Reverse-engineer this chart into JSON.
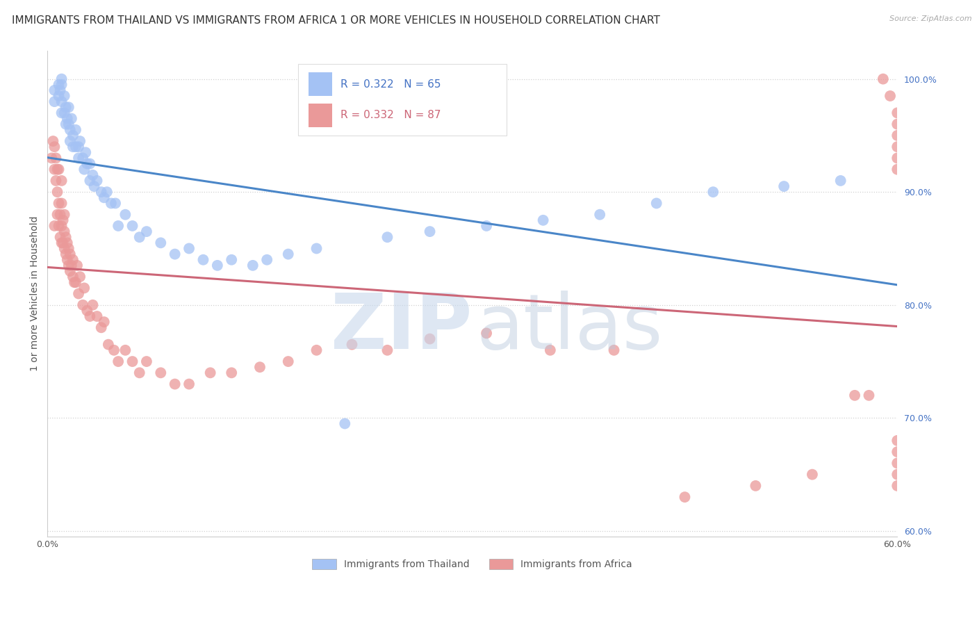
{
  "title": "IMMIGRANTS FROM THAILAND VS IMMIGRANTS FROM AFRICA 1 OR MORE VEHICLES IN HOUSEHOLD CORRELATION CHART",
  "source": "Source: ZipAtlas.com",
  "ylabel": "1 or more Vehicles in Household",
  "xlim": [
    0.0,
    0.6
  ],
  "ylim": [
    0.595,
    1.025
  ],
  "xticks": [
    0.0,
    0.1,
    0.2,
    0.3,
    0.4,
    0.5,
    0.6
  ],
  "xticklabels": [
    "0.0%",
    "",
    "",
    "",
    "",
    "",
    "60.0%"
  ],
  "yticks_right": [
    0.6,
    0.7,
    0.8,
    0.9,
    1.0
  ],
  "yticklabels_right": [
    "60.0%",
    "70.0%",
    "80.0%",
    "90.0%",
    "100.0%"
  ],
  "thailand_color": "#a4c2f4",
  "africa_color": "#ea9999",
  "trend_thailand_color": "#4a86c8",
  "trend_africa_color": "#cc6677",
  "thailand_R": 0.322,
  "thailand_N": 65,
  "africa_R": 0.332,
  "africa_N": 87,
  "legend_label_thailand": "Immigrants from Thailand",
  "legend_label_africa": "Immigrants from Africa",
  "background_color": "#ffffff",
  "grid_color": "#cccccc",
  "title_fontsize": 11,
  "axis_label_fontsize": 10,
  "tick_fontsize": 9,
  "thailand_x": [
    0.005,
    0.005,
    0.008,
    0.008,
    0.009,
    0.01,
    0.01,
    0.01,
    0.01,
    0.012,
    0.012,
    0.013,
    0.013,
    0.014,
    0.015,
    0.015,
    0.016,
    0.016,
    0.017,
    0.018,
    0.018,
    0.02,
    0.02,
    0.022,
    0.022,
    0.023,
    0.025,
    0.026,
    0.027,
    0.028,
    0.03,
    0.03,
    0.032,
    0.033,
    0.035,
    0.038,
    0.04,
    0.042,
    0.045,
    0.048,
    0.05,
    0.055,
    0.06,
    0.065,
    0.07,
    0.08,
    0.09,
    0.1,
    0.11,
    0.12,
    0.13,
    0.145,
    0.155,
    0.17,
    0.19,
    0.21,
    0.24,
    0.27,
    0.31,
    0.35,
    0.39,
    0.43,
    0.47,
    0.52,
    0.56
  ],
  "thailand_y": [
    0.99,
    0.98,
    0.995,
    0.985,
    0.99,
    0.98,
    0.97,
    0.995,
    1.0,
    0.97,
    0.985,
    0.975,
    0.96,
    0.965,
    0.975,
    0.96,
    0.955,
    0.945,
    0.965,
    0.95,
    0.94,
    0.94,
    0.955,
    0.94,
    0.93,
    0.945,
    0.93,
    0.92,
    0.935,
    0.925,
    0.91,
    0.925,
    0.915,
    0.905,
    0.91,
    0.9,
    0.895,
    0.9,
    0.89,
    0.89,
    0.87,
    0.88,
    0.87,
    0.86,
    0.865,
    0.855,
    0.845,
    0.85,
    0.84,
    0.835,
    0.84,
    0.835,
    0.84,
    0.845,
    0.85,
    0.695,
    0.86,
    0.865,
    0.87,
    0.875,
    0.88,
    0.89,
    0.9,
    0.905,
    0.91
  ],
  "africa_x": [
    0.003,
    0.004,
    0.005,
    0.005,
    0.005,
    0.006,
    0.006,
    0.007,
    0.007,
    0.007,
    0.008,
    0.008,
    0.008,
    0.009,
    0.009,
    0.01,
    0.01,
    0.01,
    0.01,
    0.011,
    0.011,
    0.012,
    0.012,
    0.012,
    0.013,
    0.013,
    0.014,
    0.014,
    0.015,
    0.015,
    0.016,
    0.016,
    0.017,
    0.018,
    0.018,
    0.019,
    0.02,
    0.021,
    0.022,
    0.023,
    0.025,
    0.026,
    0.028,
    0.03,
    0.032,
    0.035,
    0.038,
    0.04,
    0.043,
    0.047,
    0.05,
    0.055,
    0.06,
    0.065,
    0.07,
    0.08,
    0.09,
    0.1,
    0.115,
    0.13,
    0.15,
    0.17,
    0.19,
    0.215,
    0.24,
    0.27,
    0.31,
    0.355,
    0.4,
    0.45,
    0.5,
    0.54,
    0.57,
    0.58,
    0.59,
    0.595,
    0.6,
    0.6,
    0.6,
    0.6,
    0.6,
    0.6,
    0.6,
    0.6,
    0.6,
    0.6,
    0.6
  ],
  "africa_y": [
    0.93,
    0.945,
    0.87,
    0.92,
    0.94,
    0.91,
    0.93,
    0.88,
    0.9,
    0.92,
    0.87,
    0.89,
    0.92,
    0.86,
    0.88,
    0.855,
    0.87,
    0.89,
    0.91,
    0.855,
    0.875,
    0.85,
    0.865,
    0.88,
    0.845,
    0.86,
    0.84,
    0.855,
    0.835,
    0.85,
    0.83,
    0.845,
    0.835,
    0.825,
    0.84,
    0.82,
    0.82,
    0.835,
    0.81,
    0.825,
    0.8,
    0.815,
    0.795,
    0.79,
    0.8,
    0.79,
    0.78,
    0.785,
    0.765,
    0.76,
    0.75,
    0.76,
    0.75,
    0.74,
    0.75,
    0.74,
    0.73,
    0.73,
    0.74,
    0.74,
    0.745,
    0.75,
    0.76,
    0.765,
    0.76,
    0.77,
    0.775,
    0.76,
    0.76,
    0.63,
    0.64,
    0.65,
    0.72,
    0.72,
    1.0,
    0.985,
    0.97,
    0.96,
    0.95,
    0.94,
    0.93,
    0.92,
    0.68,
    0.67,
    0.66,
    0.65,
    0.64
  ]
}
